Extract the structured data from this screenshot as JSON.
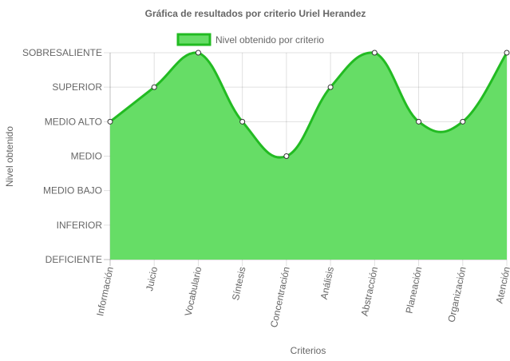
{
  "chart_data": {
    "type": "area",
    "title": "Gráfica de resultados por criterio Uriel Herandez",
    "xlabel": "Criterios",
    "ylabel": "Nivel obtenido",
    "categories": [
      "Información",
      "Juicio",
      "Vocabulario",
      "Síntesis",
      "Concentración",
      "Análisis",
      "Abstracción",
      "Planeación",
      "Organización",
      "Atención"
    ],
    "y_levels": [
      "DEFICIENTE",
      "INFERIOR",
      "MEDIO BAJO",
      "MEDIO",
      "MEDIO ALTO",
      "SUPERIOR",
      "SOBRESALIENTE"
    ],
    "ylim": [
      0,
      6
    ],
    "series": [
      {
        "name": "Nivel obtenido por criterio",
        "values": [
          4,
          5,
          6,
          4,
          3,
          5,
          6,
          4,
          4,
          6
        ],
        "fill_color": "#66dd66",
        "line_color": "#22bb22"
      }
    ],
    "legend_position": "top",
    "grid": true
  }
}
